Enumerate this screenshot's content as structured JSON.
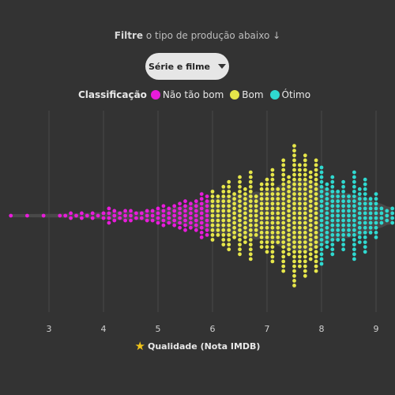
{
  "filter": {
    "prefix": "Filtre",
    "text": "o tipo de produção abaixo ↓"
  },
  "dropdown": {
    "selected": "Série e filme"
  },
  "legend": {
    "title": "Classificação",
    "items": [
      {
        "label": "Não tão bom",
        "color": "#e81bdb"
      },
      {
        "label": "Bom",
        "color": "#e6e64a"
      },
      {
        "label": "Ótimo",
        "color": "#2fd9d0"
      }
    ]
  },
  "axis_title": "Qualidade (Nota IMDB)",
  "chart_data": {
    "type": "scatter",
    "subtype": "beeswarm",
    "xlabel": "Qualidade (Nota IMDB)",
    "xlim": [
      2.2,
      9.35
    ],
    "xticks": [
      "3",
      "4",
      "5",
      "6",
      "7",
      "8",
      "9"
    ],
    "grid": true,
    "step": 0.1,
    "series": [
      {
        "name": "Não tão bom",
        "color": "#e81bdb",
        "x": [
          2.3,
          2.6,
          2.9,
          3.2,
          3.3,
          3.4,
          3.5,
          3.6,
          3.7,
          3.8,
          3.9,
          4.0,
          4.1,
          4.2,
          4.3,
          4.4,
          4.5,
          4.6,
          4.7,
          4.8,
          4.9,
          5.0,
          5.1,
          5.2,
          5.3,
          5.4,
          5.5,
          5.6,
          5.7,
          5.8,
          5.9
        ],
        "counts": [
          1,
          1,
          1,
          1,
          1,
          2,
          1,
          2,
          1,
          2,
          1,
          2,
          4,
          3,
          2,
          3,
          3,
          2,
          2,
          3,
          3,
          4,
          5,
          4,
          5,
          6,
          7,
          6,
          7,
          10,
          9
        ]
      },
      {
        "name": "Bom",
        "color": "#e6e64a",
        "x": [
          6.0,
          6.1,
          6.2,
          6.3,
          6.4,
          6.5,
          6.6,
          6.7,
          6.8,
          6.9,
          7.0,
          7.1,
          7.2,
          7.3,
          7.4,
          7.5,
          7.6,
          7.7,
          7.8,
          7.9
        ],
        "counts": [
          11,
          9,
          13,
          15,
          10,
          17,
          12,
          19,
          9,
          14,
          16,
          20,
          12,
          24,
          17,
          30,
          22,
          26,
          19,
          24
        ]
      },
      {
        "name": "Ótimo",
        "color": "#2fd9d0",
        "x": [
          8.0,
          8.1,
          8.2,
          8.3,
          8.4,
          8.5,
          8.6,
          8.7,
          8.8,
          8.9,
          9.0,
          9.1,
          9.2,
          9.3
        ],
        "counts": [
          21,
          14,
          17,
          11,
          15,
          9,
          19,
          12,
          16,
          8,
          10,
          4,
          3,
          4
        ]
      }
    ]
  }
}
